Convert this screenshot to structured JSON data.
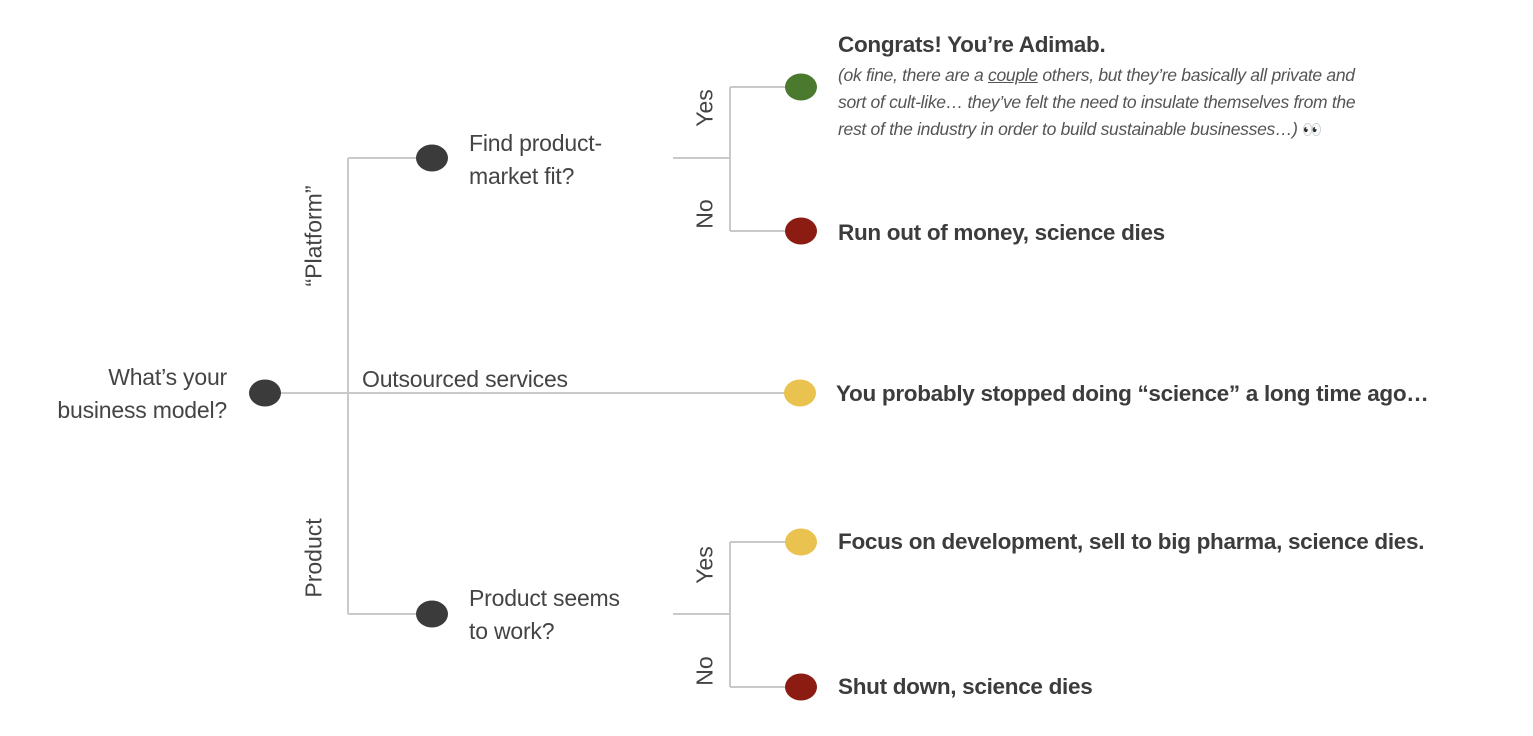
{
  "root": {
    "line1": "What’s your",
    "line2": "business model?"
  },
  "branches": {
    "platform": "“Platform”",
    "outsourced": "Outsourced services",
    "product": "Product"
  },
  "questions": {
    "platform_q": {
      "line1": "Find product-",
      "line2": "market fit?"
    },
    "product_q": {
      "line1": "Product seems",
      "line2": "to work?"
    }
  },
  "answers": {
    "yes": "Yes",
    "no": "No"
  },
  "outcomes": {
    "adimab": {
      "title": "Congrats! You’re Adimab.",
      "note_pre": "(ok fine, there are a ",
      "note_underlined": "couple",
      "note_post": " others, but they’re basically all private and",
      "note_line2": "sort of cult-like… they’ve felt the need to insulate themselves from the",
      "note_line3": "rest of the industry in order to build sustainable businesses…)",
      "emoji": "👀"
    },
    "platform_no": "Run out of money, science dies",
    "outsourced": "You probably stopped doing “science” a long time ago…",
    "product_yes": "Focus on development, sell to big pharma, science dies.",
    "product_no": "Shut down, science dies"
  },
  "colors": {
    "node": "#3b3b3b",
    "green": "#4b7a2e",
    "red": "#8c1c12",
    "yellow": "#e9c24f",
    "line": "#c9c9c9"
  }
}
